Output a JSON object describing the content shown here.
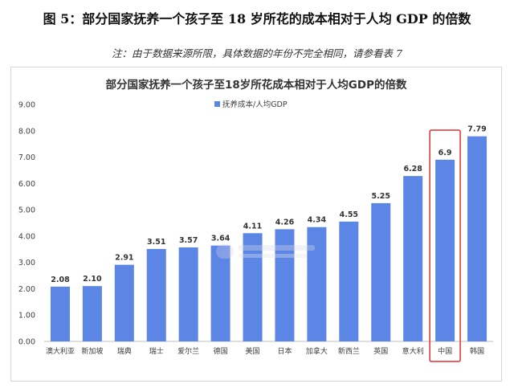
{
  "figure": {
    "title": "图 5：部分国家抚养一个孩子至 18 岁所花的成本相对于人均 GDP 的倍数",
    "note": "注：由于数据来源所限，具体数据的年份不完全相同，请参看表 7"
  },
  "chart_data": {
    "type": "bar",
    "title": "部分国家抚养一个孩子至18岁所花成本相对于人均GDP的倍数",
    "categories": [
      "澳大利亚",
      "新加坡",
      "瑞典",
      "瑞士",
      "爱尔兰",
      "德国",
      "美国",
      "日本",
      "加拿大",
      "新西兰",
      "英国",
      "意大利",
      "中国",
      "韩国"
    ],
    "series": [
      {
        "name": "抚养成本/人均GDP",
        "values": [
          2.08,
          2.1,
          2.91,
          3.51,
          3.57,
          3.64,
          4.11,
          4.26,
          4.34,
          4.55,
          5.25,
          6.28,
          6.9,
          7.79
        ],
        "labels": [
          "2.08",
          "2.10",
          "2.91",
          "3.51",
          "3.57",
          "3.64",
          "4.11",
          "4.26",
          "4.34",
          "4.55",
          "5.25",
          "6.28",
          "6.9",
          "7.79"
        ]
      }
    ],
    "ylim": [
      0,
      9
    ],
    "yticks": [
      "0.00",
      "1.00",
      "2.00",
      "3.00",
      "4.00",
      "5.00",
      "6.00",
      "7.00",
      "8.00",
      "9.00"
    ],
    "xlabel": "",
    "ylabel": "",
    "legend_position": "top-left",
    "grid": false,
    "highlight_category": "中国",
    "colors": {
      "bar": "#5b86e5",
      "highlight_box": "#e03030",
      "axis": "#bfbfbf",
      "text": "#404040"
    }
  }
}
